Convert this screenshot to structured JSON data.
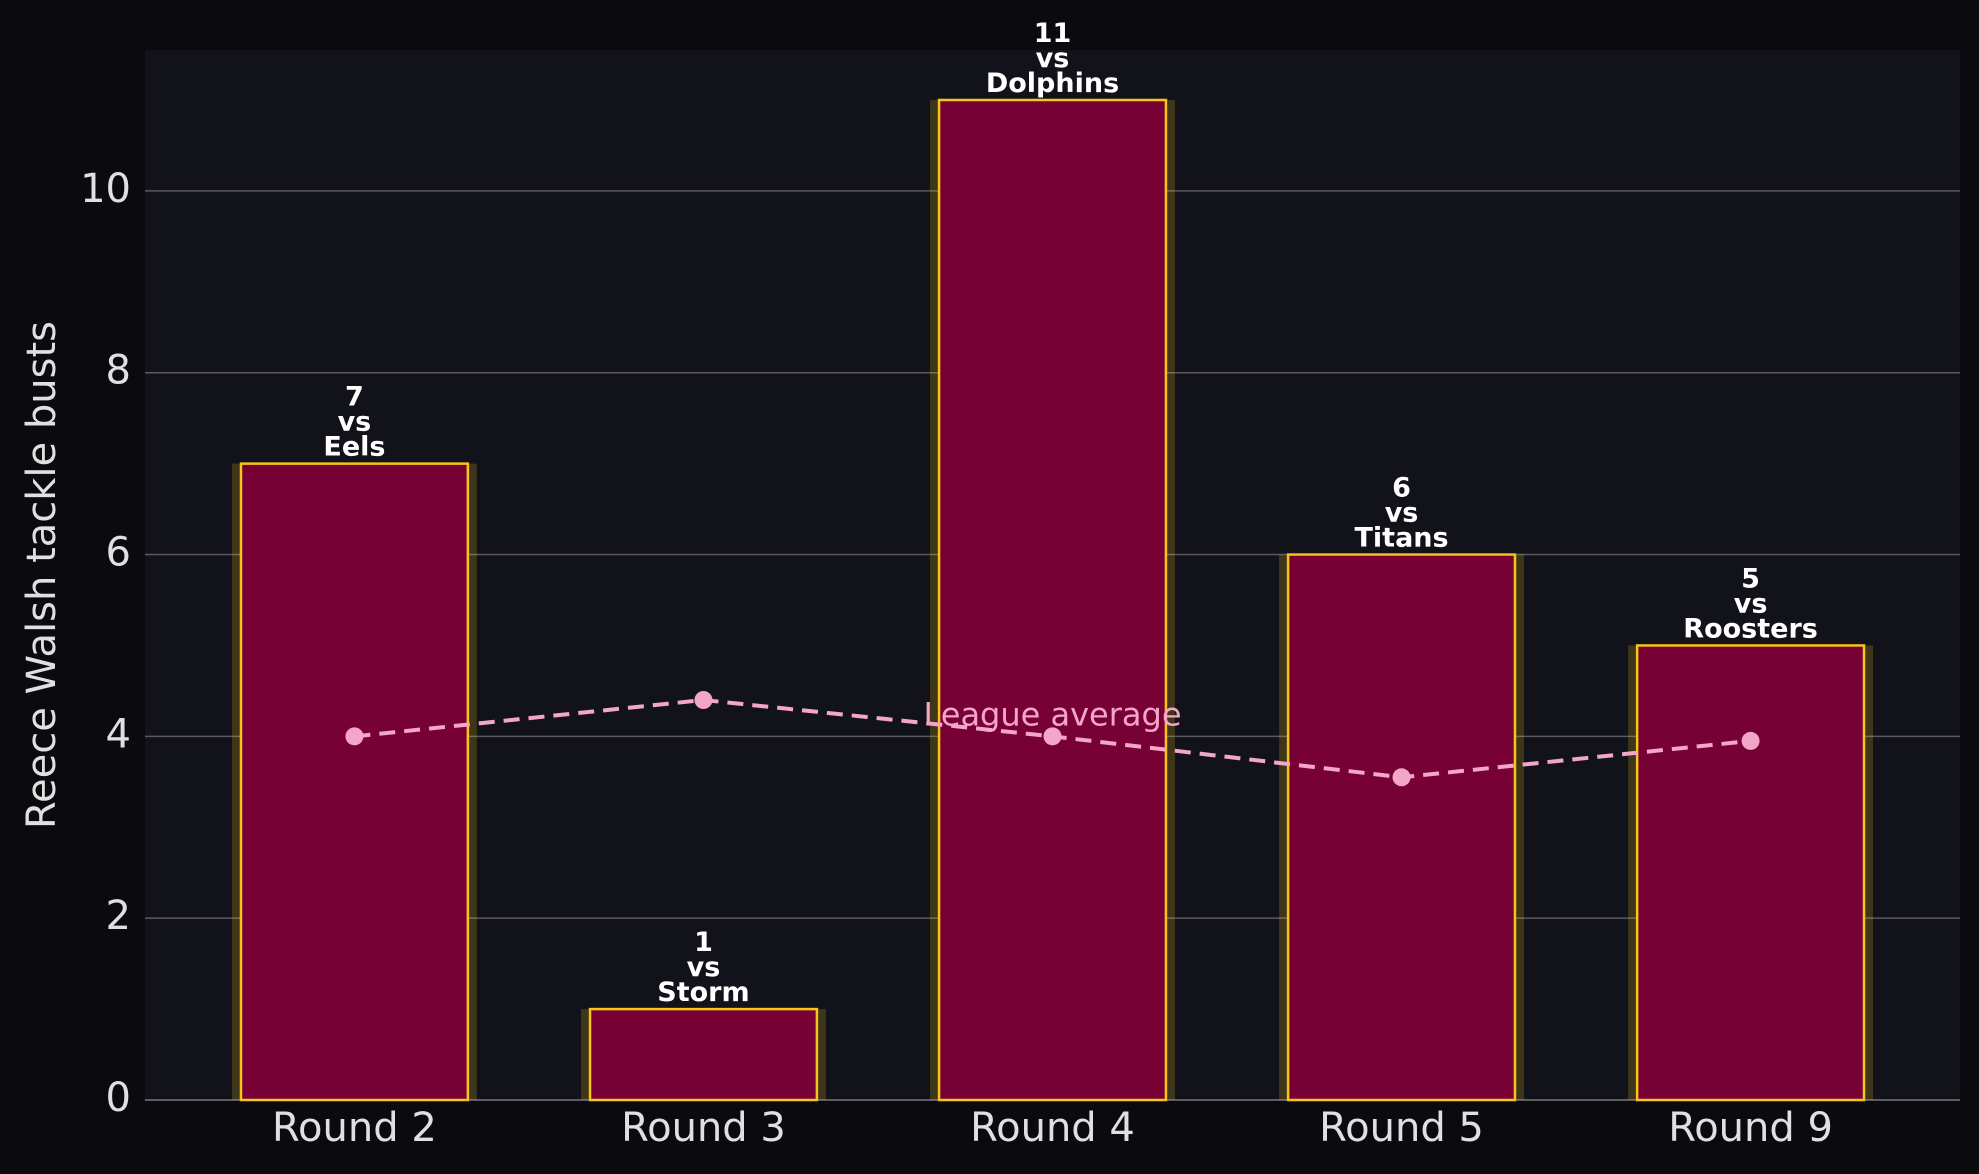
{
  "chart_data": {
    "type": "bar",
    "y_label": "Reece Walsh tackle busts",
    "categories": [
      "Round 2",
      "Round 3",
      "Round 4",
      "Round 5",
      "Round 9"
    ],
    "values": [
      7,
      1,
      11,
      6,
      5
    ],
    "value_labels": [
      "7\nvs\nEels",
      "1\nvs\nStorm",
      "11\nvs\nDolphins",
      "6\nvs\nTitans",
      "5\nvs\nRoosters"
    ],
    "color": "#770035",
    "edge_color": "#f5c518",
    "line": {
      "name": "League average",
      "color": "#f4a6c8",
      "values": [
        4.0,
        4.4,
        4.0,
        3.55,
        3.95
      ]
    },
    "ylim": [
      0,
      11.55
    ],
    "yticks": [
      0,
      2,
      4,
      6,
      8,
      10
    ],
    "grid": true
  }
}
